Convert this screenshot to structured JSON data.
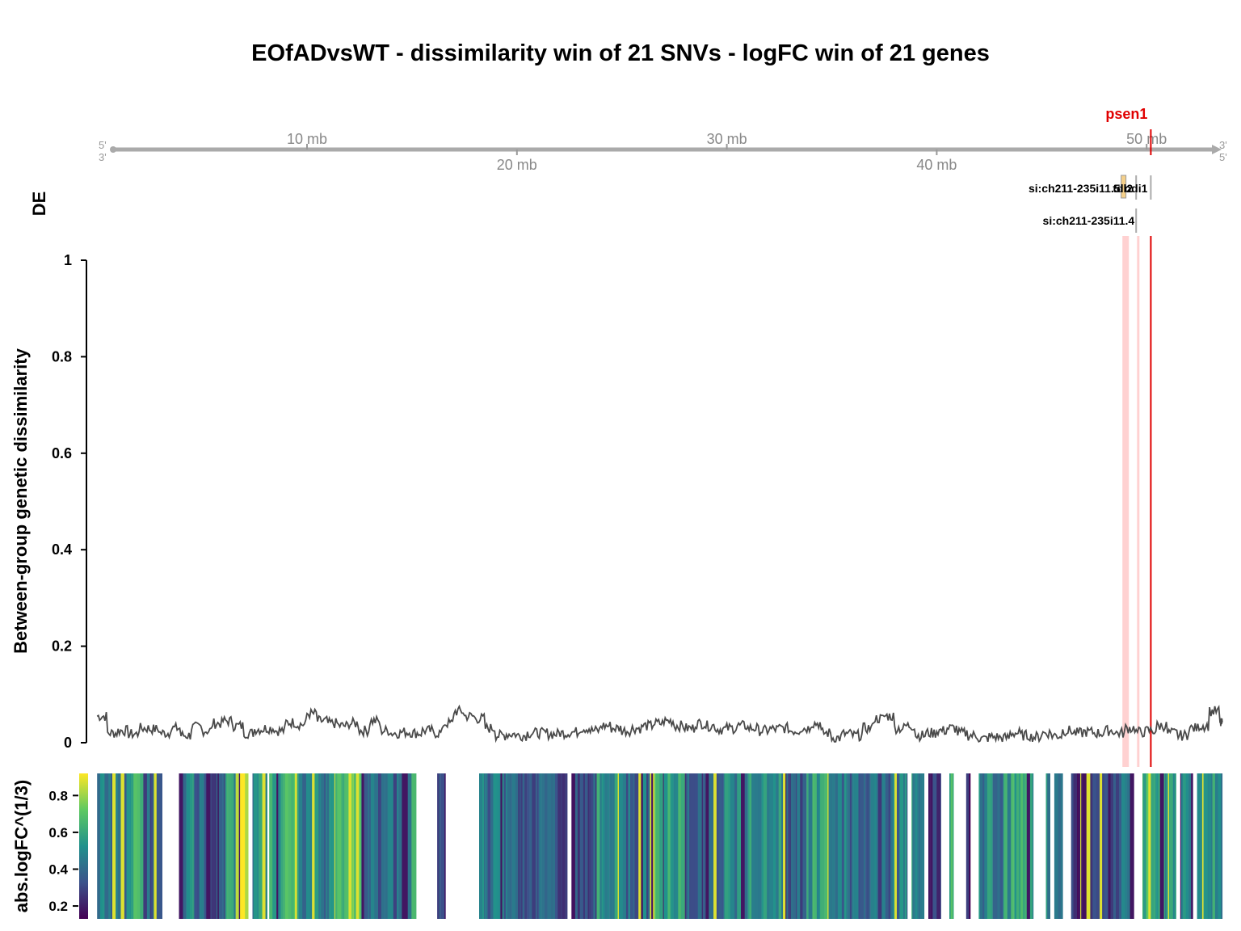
{
  "chart_data": {
    "type": "line",
    "title": "EOfADvsWT - dissimilarity win of 21 SNVs - logFC win of 21 genes",
    "genome_axis": {
      "range_mb": [
        0.0,
        53.6
      ],
      "ticks_above": [
        "10 mb",
        "30 mb",
        "50 mb"
      ],
      "ticks_above_values": [
        10,
        30,
        50
      ],
      "ticks_below": [
        "20 mb",
        "40 mb"
      ],
      "ticks_below_values": [
        20,
        40
      ],
      "strand_left_top": "5'",
      "strand_left_bottom": "3'",
      "strand_right_top": "3'",
      "strand_right_bottom": "5'"
    },
    "highlight_gene": {
      "name": "psen1",
      "position_mb": 50.2,
      "color": "#e00000"
    },
    "de_track": {
      "label": "DE",
      "genes_row1": [
        {
          "name": "si:ch211-235i11.5",
          "position_mb": 48.9
        },
        {
          "name": "tdl2",
          "position_mb": 49.5
        },
        {
          "name": "odi1",
          "position_mb": 50.2
        }
      ],
      "genes_row2": [
        {
          "name": "si:ch211-235i11.4",
          "position_mb": 49.5
        }
      ],
      "highlight_bands_mb": [
        49.0,
        49.6
      ]
    },
    "dissimilarity": {
      "ylabel": "Between-group genetic dissimilarity",
      "ylim": [
        0,
        1
      ],
      "yticks": [
        0,
        0.2,
        0.4,
        0.6,
        0.8,
        1
      ],
      "ytick_labels": [
        "0",
        "0.2",
        "0.4",
        "0.6",
        "0.8",
        "1"
      ],
      "x_mb": [
        0.0,
        0.5,
        1.0,
        1.5,
        2.0,
        2.5,
        3.0,
        3.5,
        4.0,
        4.5,
        5.0,
        5.5,
        6.0,
        6.5,
        7.0,
        7.5,
        8.0,
        8.5,
        9.0,
        9.5,
        10.0,
        10.5,
        11.0,
        11.5,
        12.0,
        12.5,
        13.0,
        13.5,
        14.0,
        14.5,
        15.0,
        15.5,
        16.0,
        16.5,
        17.0,
        17.5,
        18.0,
        18.5,
        19.0,
        19.5,
        20.0,
        20.5,
        21.0,
        21.5,
        22.0,
        22.5,
        23.0,
        23.5,
        24.0,
        24.5,
        25.0,
        25.5,
        26.0,
        26.5,
        27.0,
        27.5,
        28.0,
        28.5,
        29.0,
        29.5,
        30.0,
        30.5,
        31.0,
        31.5,
        32.0,
        32.5,
        33.0,
        33.5,
        34.0,
        34.5,
        35.0,
        35.5,
        36.0,
        36.5,
        37.0,
        37.5,
        38.0,
        38.5,
        39.0,
        39.5,
        40.0,
        40.5,
        41.0,
        41.5,
        42.0,
        42.5,
        43.0,
        43.5,
        44.0,
        44.5,
        45.0,
        45.5,
        46.0,
        46.5,
        47.0,
        47.5,
        48.0,
        48.5,
        49.0,
        49.5,
        50.0,
        50.5,
        51.0,
        51.5,
        52.0,
        52.5,
        53.0,
        53.5
      ],
      "y": [
        0.055,
        0.02,
        0.025,
        0.018,
        0.03,
        0.028,
        0.02,
        0.03,
        0.015,
        0.032,
        0.025,
        0.04,
        0.045,
        0.035,
        0.02,
        0.028,
        0.03,
        0.025,
        0.042,
        0.038,
        0.06,
        0.045,
        0.04,
        0.035,
        0.04,
        0.025,
        0.045,
        0.025,
        0.02,
        0.022,
        0.02,
        0.025,
        0.02,
        0.04,
        0.065,
        0.055,
        0.05,
        0.03,
        0.015,
        0.018,
        0.015,
        0.02,
        0.02,
        0.018,
        0.02,
        0.022,
        0.03,
        0.025,
        0.035,
        0.03,
        0.025,
        0.03,
        0.035,
        0.04,
        0.045,
        0.035,
        0.03,
        0.04,
        0.035,
        0.028,
        0.03,
        0.035,
        0.03,
        0.025,
        0.028,
        0.03,
        0.025,
        0.03,
        0.04,
        0.02,
        0.01,
        0.018,
        0.015,
        0.03,
        0.05,
        0.055,
        0.03,
        0.035,
        0.015,
        0.02,
        0.025,
        0.03,
        0.02,
        0.015,
        0.008,
        0.012,
        0.01,
        0.02,
        0.015,
        0.012,
        0.02,
        0.015,
        0.025,
        0.02,
        0.022,
        0.02,
        0.025,
        0.02,
        0.03,
        0.022,
        0.025,
        0.035,
        0.02,
        0.015,
        0.03,
        0.035,
        0.065,
        0.04
      ]
    },
    "logfc_heatmap": {
      "ylabel": "abs.logFC^(1/3)",
      "colorbar_ticks": [
        0.2,
        0.4,
        0.6,
        0.8
      ],
      "colorbar_tick_labels": [
        "0.2",
        "0.4",
        "0.6",
        "0.8"
      ],
      "colorbar_range": [
        0.13,
        0.92
      ],
      "bars_mb": [
        [
          0.0,
          1.6,
          0.45
        ],
        [
          1.6,
          2.2,
          0.62
        ],
        [
          2.2,
          3.1,
          0.35
        ],
        [
          3.9,
          4.6,
          0.5
        ],
        [
          4.6,
          5.4,
          0.38
        ],
        [
          5.4,
          6.1,
          0.3
        ],
        [
          6.1,
          6.6,
          0.55
        ],
        [
          6.6,
          7.2,
          0.9
        ],
        [
          7.4,
          8.1,
          0.48
        ],
        [
          8.2,
          9.6,
          0.6
        ],
        [
          9.6,
          11.1,
          0.45
        ],
        [
          11.1,
          12.6,
          0.66
        ],
        [
          12.6,
          14.8,
          0.4
        ],
        [
          14.8,
          15.2,
          0.55
        ],
        [
          16.2,
          16.6,
          0.3
        ],
        [
          18.2,
          19.6,
          0.42
        ],
        [
          19.6,
          21.0,
          0.38
        ],
        [
          21.0,
          22.4,
          0.34
        ],
        [
          22.6,
          23.0,
          0.28
        ],
        [
          23.0,
          23.8,
          0.32
        ],
        [
          23.8,
          25.2,
          0.52
        ],
        [
          25.2,
          26.4,
          0.4
        ],
        [
          26.4,
          28.0,
          0.58
        ],
        [
          28.0,
          29.6,
          0.36
        ],
        [
          29.6,
          31.0,
          0.46
        ],
        [
          31.0,
          32.6,
          0.5
        ],
        [
          32.6,
          33.8,
          0.35
        ],
        [
          33.8,
          35.0,
          0.55
        ],
        [
          35.0,
          36.6,
          0.42
        ],
        [
          36.6,
          37.8,
          0.38
        ],
        [
          37.8,
          38.6,
          0.44
        ],
        [
          38.8,
          39.4,
          0.5
        ],
        [
          39.6,
          40.2,
          0.3
        ],
        [
          40.6,
          40.8,
          0.6
        ],
        [
          41.4,
          41.6,
          0.2
        ],
        [
          42.0,
          43.2,
          0.48
        ],
        [
          43.2,
          44.6,
          0.55
        ],
        [
          45.2,
          45.4,
          0.5
        ],
        [
          45.6,
          46.0,
          0.42
        ],
        [
          46.4,
          47.6,
          0.28
        ],
        [
          47.6,
          48.8,
          0.34
        ],
        [
          48.8,
          49.4,
          0.38
        ],
        [
          49.8,
          50.2,
          0.6
        ],
        [
          50.2,
          51.4,
          0.5
        ],
        [
          51.6,
          52.2,
          0.44
        ],
        [
          52.4,
          53.6,
          0.52
        ]
      ]
    }
  }
}
